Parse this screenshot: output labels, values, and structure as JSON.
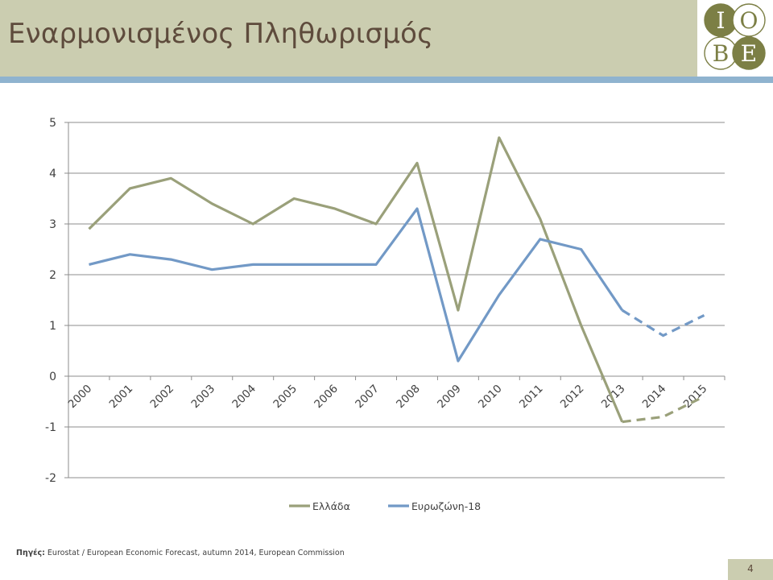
{
  "slide": {
    "title": "Εναρμονισμένος Πληθωρισμός",
    "source_label": "Πηγές:",
    "source_text": " Eurostat / European Economic Forecast, autumn 2014, European Commission",
    "page_number": "4",
    "logo_letters": [
      "I",
      "O",
      "B",
      "E"
    ]
  },
  "colors": {
    "header_bg": "#cbcdb0",
    "header_rule": "#8fb3cf",
    "title_text": "#5e4b3c",
    "logo_green": "#7c7f45",
    "greece": "#9aa07a",
    "eurozone": "#7299c6",
    "grid": "#8c8c8c"
  },
  "chart_data": {
    "type": "line",
    "categories": [
      "2000",
      "2001",
      "2002",
      "2003",
      "2004",
      "2005",
      "2006",
      "2007",
      "2008",
      "2009",
      "2010",
      "2011",
      "2012",
      "2013",
      "2014",
      "2015"
    ],
    "ylim": [
      -2,
      5
    ],
    "yticks": [
      5,
      4,
      3,
      2,
      1,
      0,
      -1,
      -2
    ],
    "grid": true,
    "legend_position": "bottom",
    "forecast_from": "2013",
    "series": [
      {
        "name": "Ελλάδα",
        "color": "#9aa07a",
        "values": [
          2.9,
          3.7,
          3.9,
          3.4,
          3.0,
          3.5,
          3.3,
          3.0,
          4.2,
          1.3,
          4.7,
          3.1,
          1.0,
          -0.9,
          -0.8,
          -0.4
        ]
      },
      {
        "name": "Ευρωζώνη-18",
        "color": "#7299c6",
        "values": [
          2.2,
          2.4,
          2.3,
          2.1,
          2.2,
          2.2,
          2.2,
          2.2,
          3.3,
          0.3,
          1.6,
          2.7,
          2.5,
          1.3,
          0.8,
          1.2
        ]
      }
    ]
  }
}
